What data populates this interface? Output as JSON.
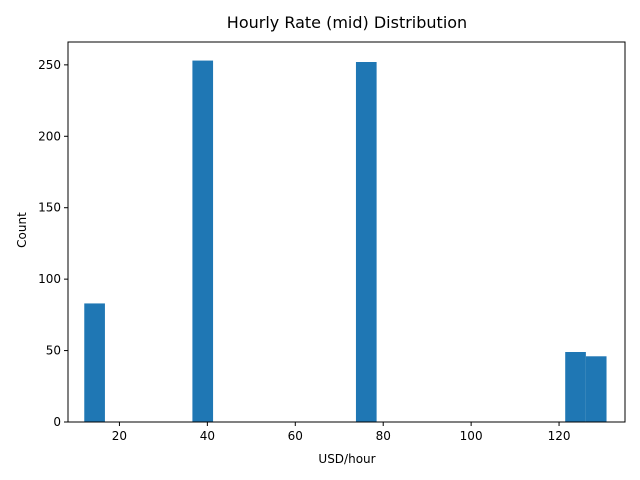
{
  "chart_data": {
    "type": "bar",
    "title": "Hourly Rate (mid) Distribution",
    "xlabel": "USD/hour",
    "ylabel": "Count",
    "xlim": [
      8.3,
      135.0
    ],
    "ylim": [
      0,
      266
    ],
    "xticks": [
      20,
      40,
      60,
      80,
      100,
      120
    ],
    "yticks": [
      0,
      50,
      100,
      150,
      200,
      250
    ],
    "grid": false,
    "bar_color": "#1f77b4",
    "bins": [
      {
        "x0": 12.0,
        "x1": 16.7,
        "count": 83
      },
      {
        "x0": 36.6,
        "x1": 41.3,
        "count": 253
      },
      {
        "x0": 73.8,
        "x1": 78.5,
        "count": 252
      },
      {
        "x0": 121.4,
        "x1": 126.1,
        "count": 49
      },
      {
        "x0": 126.1,
        "x1": 130.8,
        "count": 46
      }
    ]
  }
}
